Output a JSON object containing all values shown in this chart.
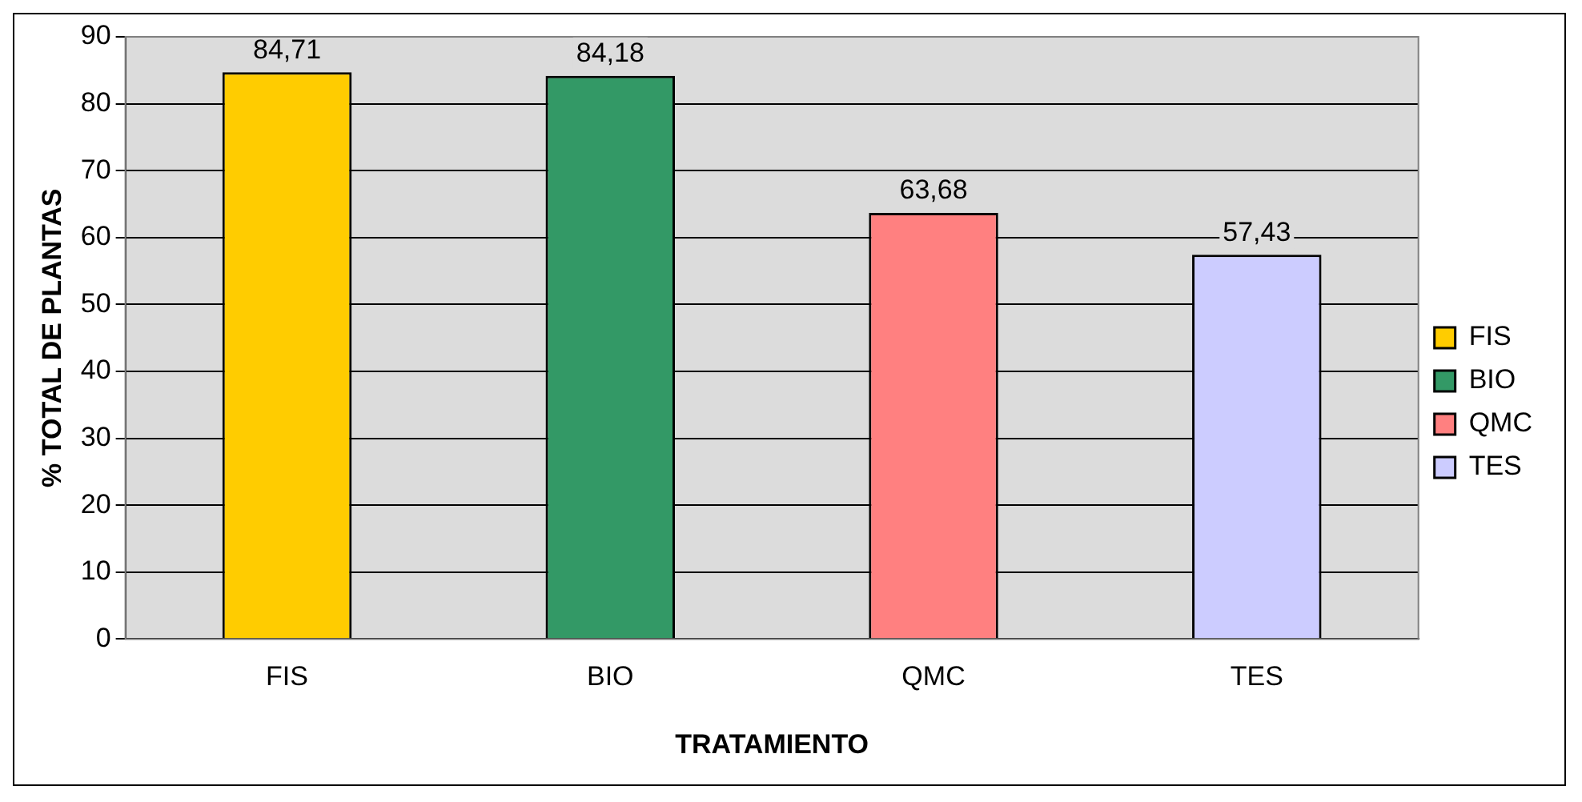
{
  "chart_data": {
    "type": "bar",
    "xlabel": "TRATAMIENTO",
    "ylabel": "% TOTAL DE PLANTAS",
    "categories": [
      "FIS",
      "BIO",
      "QMC",
      "TES"
    ],
    "series": [
      {
        "name": "FIS",
        "color": "#ffcc00",
        "values": [
          84.71,
          null,
          null,
          null
        ],
        "value_labels": [
          "84,71",
          null,
          null,
          null
        ]
      },
      {
        "name": "BIO",
        "color": "#339966",
        "values": [
          null,
          84.18,
          null,
          null
        ],
        "value_labels": [
          null,
          "84,18",
          null,
          null
        ]
      },
      {
        "name": "QMC",
        "color": "#ff8080",
        "values": [
          null,
          null,
          63.68,
          null
        ],
        "value_labels": [
          null,
          null,
          "63,68",
          null
        ]
      },
      {
        "name": "TES",
        "color": "#ccccff",
        "values": [
          null,
          null,
          null,
          57.43
        ],
        "value_labels": [
          null,
          null,
          null,
          "57,43"
        ]
      }
    ],
    "ylim": [
      0,
      90
    ],
    "yticks": [
      0,
      10,
      20,
      30,
      40,
      50,
      60,
      70,
      80,
      90
    ],
    "grid": "y",
    "legend": "right"
  }
}
